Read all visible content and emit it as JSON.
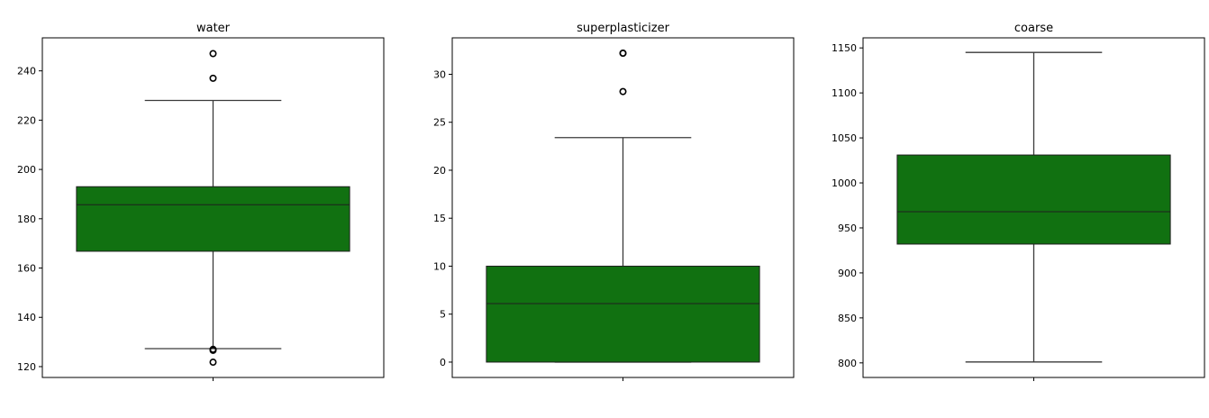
{
  "chart_data": [
    {
      "type": "box",
      "title": "water",
      "xlabel": "",
      "ylabel": "",
      "ylim": [
        115.6,
        253.4
      ],
      "yticks": [
        120,
        140,
        160,
        180,
        200,
        220,
        240
      ],
      "box": {
        "whislo": 127.3,
        "q1": 166.8,
        "med": 185.7,
        "q3": 193.0,
        "whishi": 228.0
      },
      "fliers": [
        247.0,
        237.0,
        126.6,
        127.0,
        121.8
      ],
      "color": "#117111"
    },
    {
      "type": "box",
      "title": "superplasticizer",
      "xlabel": "",
      "ylabel": "",
      "ylim": [
        -1.6,
        33.8
      ],
      "yticks": [
        0,
        5,
        10,
        15,
        20,
        25,
        30
      ],
      "box": {
        "whislo": 0.0,
        "q1": 0.0,
        "med": 6.1,
        "q3": 10.0,
        "whishi": 23.4
      },
      "fliers": [
        32.2,
        32.2,
        28.2
      ],
      "color": "#117111"
    },
    {
      "type": "box",
      "title": "coarse",
      "xlabel": "",
      "ylabel": "",
      "ylim": [
        783.8,
        1161.2
      ],
      "yticks": [
        800,
        850,
        900,
        950,
        1000,
        1050,
        1100,
        1150
      ],
      "box": {
        "whislo": 801.0,
        "q1": 932.0,
        "med": 968.0,
        "q3": 1031.0,
        "whishi": 1145.0
      },
      "fliers": [],
      "color": "#117111"
    }
  ]
}
